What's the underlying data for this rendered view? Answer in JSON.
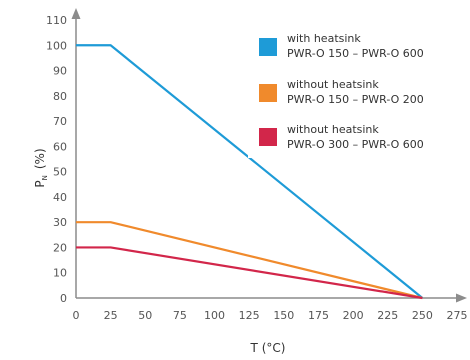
{
  "chart_data": {
    "type": "line",
    "xlabel": "T (°C)",
    "ylabel_main": "P",
    "ylabel_sub": "N",
    "ylabel_unit": "(%)",
    "xlim": [
      0,
      275
    ],
    "ylim": [
      0,
      110
    ],
    "x_ticks": [
      0,
      25,
      50,
      75,
      100,
      125,
      150,
      175,
      200,
      225,
      250,
      275
    ],
    "y_ticks": [
      0,
      10,
      20,
      30,
      40,
      50,
      60,
      70,
      80,
      90,
      100,
      110
    ],
    "grid": false,
    "legend_position": "top-right",
    "series": [
      {
        "name_line1": "with heatsink",
        "name_line2": "PWR-O 150 – PWR-O 600",
        "color": "#1e9bd7",
        "x": [
          0,
          25,
          250
        ],
        "y": [
          100,
          100,
          0
        ]
      },
      {
        "name_line1": "without heatsink",
        "name_line2": "PWR-O 150 – PWR-O 200",
        "color": "#f08a2c",
        "x": [
          0,
          25,
          250
        ],
        "y": [
          30,
          30,
          0
        ]
      },
      {
        "name_line1": "without heatsink",
        "name_line2": "PWR-O 300 – PWR-O 600",
        "color": "#d2264a",
        "x": [
          0,
          25,
          250
        ],
        "y": [
          20,
          20,
          0
        ]
      }
    ]
  }
}
